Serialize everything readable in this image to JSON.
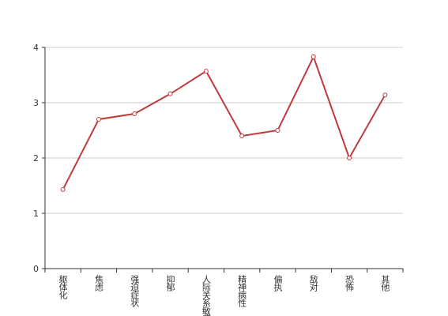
{
  "chart_data": {
    "type": "line",
    "categories": [
      "躯体化",
      "焦虑",
      "强迫症状",
      "抑郁",
      "人际关系敏感",
      "精神病性",
      "偏执",
      "敌对",
      "恐怖",
      "其他"
    ],
    "series": [
      {
        "color": "#bf3b3b",
        "values": [
          1.43,
          2.7,
          2.8,
          3.16,
          3.57,
          2.4,
          2.5,
          3.83,
          2.0,
          3.14
        ]
      }
    ],
    "ylim": [
      0,
      4
    ],
    "yticks": [
      0,
      1,
      2,
      3,
      4
    ],
    "grid": true
  }
}
